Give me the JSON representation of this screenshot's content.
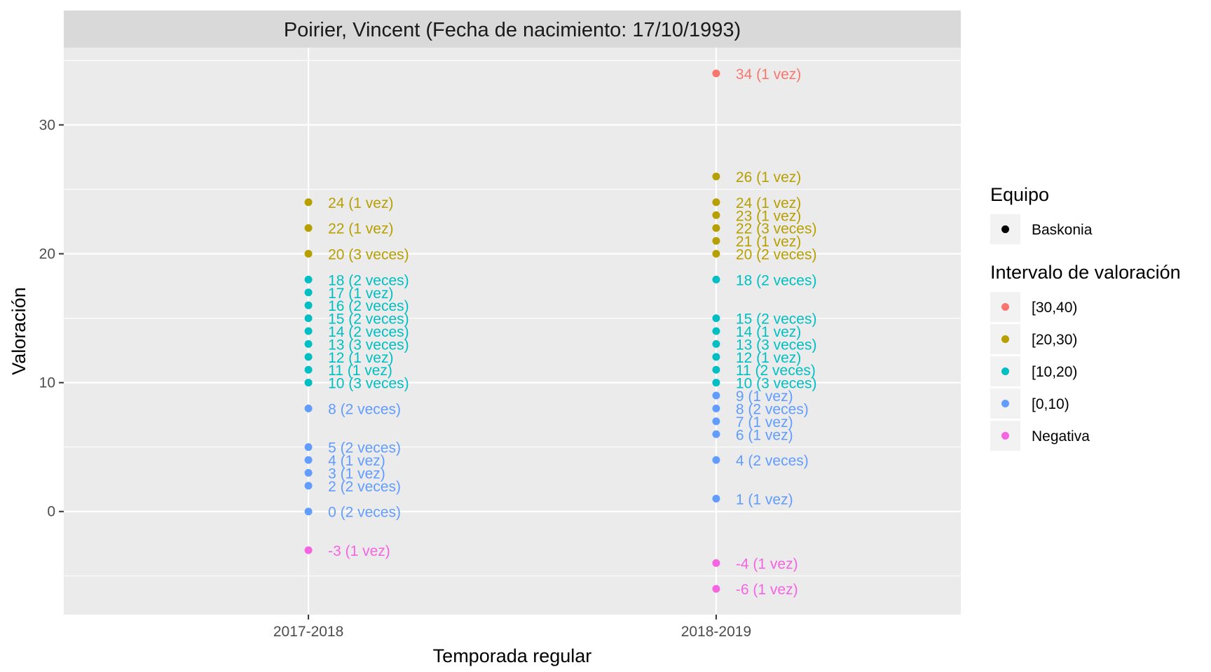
{
  "chart_data": {
    "type": "scatter",
    "title": "Poirier, Vincent (Fecha de nacimiento: 17/10/1993)",
    "xlabel": "Temporada regular",
    "ylabel": "Valoración",
    "categories": [
      "2017-2018",
      "2018-2019"
    ],
    "ylim": [
      -8,
      36
    ],
    "yticks": [
      0,
      10,
      20,
      30
    ],
    "grid": true,
    "legend_position": "right",
    "legends": [
      {
        "title": "Equipo",
        "entries": [
          {
            "label": "Baskonia",
            "color": "#000000"
          }
        ]
      },
      {
        "title": "Intervalo de valoración",
        "entries": [
          {
            "label": "[30,40)",
            "color": "#F8766D"
          },
          {
            "label": "[20,30)",
            "color": "#B79F00"
          },
          {
            "label": "[10,20)",
            "color": "#00BFC4"
          },
          {
            "label": "[0,10)",
            "color": "#619CFF"
          },
          {
            "label": "Negativa",
            "color": "#F564E3"
          }
        ]
      }
    ],
    "series": [
      {
        "x": "2017-2018",
        "points": [
          {
            "y": 24,
            "label": "24 (1 vez)",
            "interval": "[20,30)"
          },
          {
            "y": 22,
            "label": "22 (1 vez)",
            "interval": "[20,30)"
          },
          {
            "y": 20,
            "label": "20 (3 veces)",
            "interval": "[20,30)"
          },
          {
            "y": 18,
            "label": "18 (2 veces)",
            "interval": "[10,20)"
          },
          {
            "y": 17,
            "label": "17 (1 vez)",
            "interval": "[10,20)"
          },
          {
            "y": 16,
            "label": "16 (2 veces)",
            "interval": "[10,20)"
          },
          {
            "y": 15,
            "label": "15 (2 veces)",
            "interval": "[10,20)"
          },
          {
            "y": 14,
            "label": "14 (2 veces)",
            "interval": "[10,20)"
          },
          {
            "y": 13,
            "label": "13 (3 veces)",
            "interval": "[10,20)"
          },
          {
            "y": 12,
            "label": "12 (1 vez)",
            "interval": "[10,20)"
          },
          {
            "y": 11,
            "label": "11 (1 vez)",
            "interval": "[10,20)"
          },
          {
            "y": 10,
            "label": "10 (3 veces)",
            "interval": "[10,20)"
          },
          {
            "y": 8,
            "label": "8 (2 veces)",
            "interval": "[0,10)"
          },
          {
            "y": 5,
            "label": "5 (2 veces)",
            "interval": "[0,10)"
          },
          {
            "y": 4,
            "label": "4 (1 vez)",
            "interval": "[0,10)"
          },
          {
            "y": 3,
            "label": "3 (1 vez)",
            "interval": "[0,10)"
          },
          {
            "y": 2,
            "label": "2 (2 veces)",
            "interval": "[0,10)"
          },
          {
            "y": 0,
            "label": "0 (2 veces)",
            "interval": "[0,10)"
          },
          {
            "y": -3,
            "label": "-3 (1 vez)",
            "interval": "Negativa"
          }
        ]
      },
      {
        "x": "2018-2019",
        "points": [
          {
            "y": 34,
            "label": "34 (1 vez)",
            "interval": "[30,40)"
          },
          {
            "y": 26,
            "label": "26 (1 vez)",
            "interval": "[20,30)"
          },
          {
            "y": 24,
            "label": "24 (1 vez)",
            "interval": "[20,30)"
          },
          {
            "y": 23,
            "label": "23 (1 vez)",
            "interval": "[20,30)"
          },
          {
            "y": 22,
            "label": "22 (3 veces)",
            "interval": "[20,30)"
          },
          {
            "y": 21,
            "label": "21 (1 vez)",
            "interval": "[20,30)"
          },
          {
            "y": 20,
            "label": "20 (2 veces)",
            "interval": "[20,30)"
          },
          {
            "y": 18,
            "label": "18 (2 veces)",
            "interval": "[10,20)"
          },
          {
            "y": 15,
            "label": "15 (2 veces)",
            "interval": "[10,20)"
          },
          {
            "y": 14,
            "label": "14 (1 vez)",
            "interval": "[10,20)"
          },
          {
            "y": 13,
            "label": "13 (3 veces)",
            "interval": "[10,20)"
          },
          {
            "y": 12,
            "label": "12 (1 vez)",
            "interval": "[10,20)"
          },
          {
            "y": 11,
            "label": "11 (2 veces)",
            "interval": "[10,20)"
          },
          {
            "y": 10,
            "label": "10 (3 veces)",
            "interval": "[10,20)"
          },
          {
            "y": 9,
            "label": "9 (1 vez)",
            "interval": "[0,10)"
          },
          {
            "y": 8,
            "label": "8 (2 veces)",
            "interval": "[0,10)"
          },
          {
            "y": 7,
            "label": "7 (1 vez)",
            "interval": "[0,10)"
          },
          {
            "y": 6,
            "label": "6 (1 vez)",
            "interval": "[0,10)"
          },
          {
            "y": 4,
            "label": "4 (2 veces)",
            "interval": "[0,10)"
          },
          {
            "y": 1,
            "label": "1 (1 vez)",
            "interval": "[0,10)"
          },
          {
            "y": -4,
            "label": "-4 (1 vez)",
            "interval": "Negativa"
          },
          {
            "y": -6,
            "label": "-6 (1 vez)",
            "interval": "Negativa"
          }
        ]
      }
    ]
  }
}
